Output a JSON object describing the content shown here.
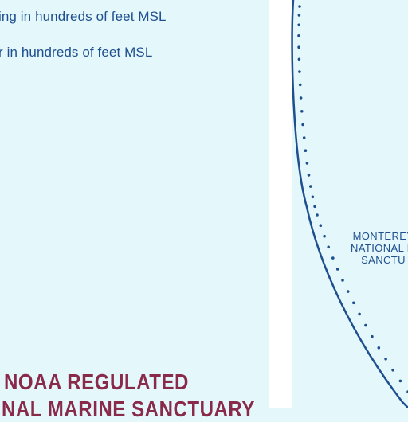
{
  "legend": {
    "line1": "ing in hundreds of feet MSL",
    "line2": "r in hundreds of feet MSL"
  },
  "noaa_notice": {
    "line1": "NOAA REGULATED",
    "line2": "NAL MARINE SANCTUARY"
  },
  "sanctuary": {
    "line1": "MONTEREY",
    "line2": "NATIONAL M",
    "line3": "SANCTU"
  },
  "colors": {
    "water": "#e4f8fb",
    "text_blue": "#1f4f8f",
    "text_maroon": "#8a2a4a",
    "boundary": "#1f4f8f"
  }
}
